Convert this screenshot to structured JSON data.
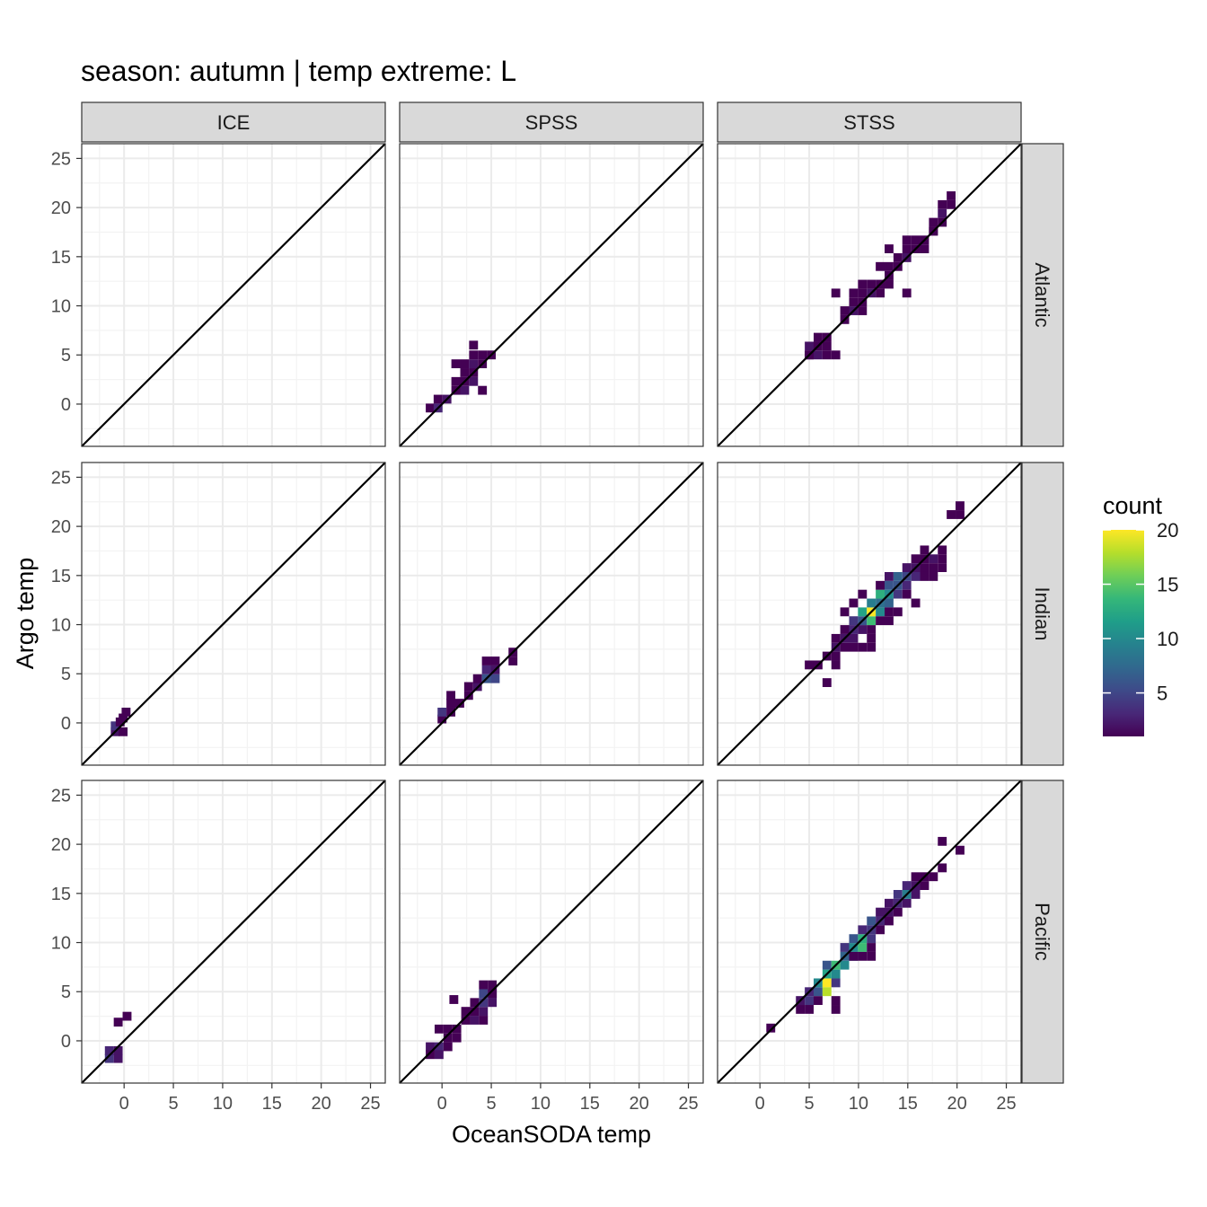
{
  "chart_data": {
    "type": "heatmap",
    "title": "season: autumn | temp extreme: L",
    "xlabel": "OceanSODA temp",
    "ylabel": "Argo temp",
    "xlim": [
      -4.3,
      26.5
    ],
    "ylim": [
      -4.3,
      26.5
    ],
    "x_ticks": [
      0,
      5,
      10,
      15,
      20,
      25
    ],
    "y_ticks": [
      0,
      5,
      10,
      15,
      20,
      25
    ],
    "x_tick_labels": [
      "0",
      "5",
      "10",
      "15",
      "20",
      "25"
    ],
    "y_tick_labels": [
      "0",
      "5",
      "10",
      "15",
      "20",
      "25"
    ],
    "grid": true,
    "identity_line": true,
    "bin_width": 0.9,
    "col_facets": [
      "ICE",
      "SPSS",
      "STSS"
    ],
    "row_facets": [
      "Atlantic",
      "Indian",
      "Pacific"
    ],
    "legend": {
      "title": "count",
      "position": "right",
      "min": 1,
      "max": 20,
      "ticks": [
        5,
        10,
        15,
        20
      ],
      "tick_labels": [
        "5",
        "10",
        "15",
        "20"
      ],
      "colors": [
        "#440154",
        "#482878",
        "#3e4a89",
        "#31688e",
        "#26828e",
        "#1f9e89",
        "#35b779",
        "#6ece58",
        "#b5de2b",
        "#fde725"
      ]
    },
    "panels": [
      {
        "row": "Atlantic",
        "col": "ICE",
        "bins": []
      },
      {
        "row": "Atlantic",
        "col": "SPSS",
        "bins": [
          [
            -1.2,
            -0.4,
            1
          ],
          [
            -0.4,
            -0.4,
            3
          ],
          [
            -0.4,
            0.5,
            1
          ],
          [
            0.5,
            0.5,
            2
          ],
          [
            1.4,
            1.4,
            1
          ],
          [
            2.3,
            2.3,
            1
          ],
          [
            1.4,
            2.3,
            1
          ],
          [
            2.3,
            1.4,
            2
          ],
          [
            3.2,
            3.2,
            1
          ],
          [
            3.2,
            2.3,
            2
          ],
          [
            2.3,
            3.2,
            1
          ],
          [
            1.4,
            4.1,
            1
          ],
          [
            2.3,
            4.1,
            1
          ],
          [
            3.2,
            4.1,
            2
          ],
          [
            4.1,
            4.1,
            1
          ],
          [
            3.2,
            5.0,
            1
          ],
          [
            4.1,
            5.0,
            1
          ],
          [
            5.0,
            5.0,
            1
          ],
          [
            3.2,
            6.0,
            1
          ],
          [
            4.1,
            1.4,
            1
          ]
        ]
      },
      {
        "row": "Atlantic",
        "col": "STSS",
        "bins": [
          [
            5.0,
            5.9,
            2
          ],
          [
            5.9,
            5.9,
            1
          ],
          [
            5.0,
            5.0,
            1
          ],
          [
            5.0,
            5.0,
            1
          ],
          [
            5.9,
            5.0,
            2
          ],
          [
            6.8,
            5.0,
            1
          ],
          [
            6.8,
            5.9,
            1
          ],
          [
            7.7,
            5.0,
            1
          ],
          [
            5.9,
            6.8,
            1
          ],
          [
            6.8,
            6.8,
            1
          ],
          [
            8.6,
            8.6,
            1
          ],
          [
            9.5,
            9.5,
            2
          ],
          [
            9.5,
            10.4,
            1
          ],
          [
            10.4,
            10.4,
            1
          ],
          [
            11.3,
            11.3,
            2
          ],
          [
            12.2,
            12.2,
            1
          ],
          [
            12.2,
            11.3,
            1
          ],
          [
            13.1,
            13.1,
            1
          ],
          [
            13.1,
            14.0,
            1
          ],
          [
            14.0,
            14.0,
            1
          ],
          [
            14.9,
            14.9,
            2
          ],
          [
            15.8,
            15.8,
            1
          ],
          [
            14.9,
            16.7,
            1
          ],
          [
            15.8,
            16.7,
            1
          ],
          [
            16.7,
            16.7,
            1
          ],
          [
            16.7,
            15.8,
            1
          ],
          [
            17.6,
            18.5,
            1
          ],
          [
            18.5,
            18.5,
            1
          ],
          [
            19.4,
            20.3,
            1
          ],
          [
            18.5,
            20.3,
            1
          ],
          [
            19.4,
            21.2,
            1
          ],
          [
            18.5,
            19.4,
            2
          ],
          [
            17.6,
            17.6,
            1
          ],
          [
            11.3,
            12.2,
            1
          ],
          [
            10.4,
            11.3,
            1
          ],
          [
            7.7,
            11.3,
            1
          ],
          [
            9.5,
            11.3,
            1
          ],
          [
            10.4,
            12.2,
            1
          ],
          [
            14.9,
            11.3,
            1
          ],
          [
            13.1,
            12.2,
            1
          ],
          [
            14.0,
            14.9,
            1
          ],
          [
            8.6,
            9.5,
            1
          ],
          [
            13.1,
            15.8,
            1
          ],
          [
            14.9,
            15.8,
            1
          ],
          [
            17.6,
            17.6,
            1
          ],
          [
            12.2,
            14.0,
            1
          ],
          [
            10.4,
            9.5,
            1
          ]
        ]
      },
      {
        "row": "Indian",
        "col": "ICE",
        "bins": [
          [
            -0.9,
            -0.9,
            2
          ],
          [
            -0.9,
            -0.3,
            4
          ],
          [
            -0.4,
            0.1,
            1
          ],
          [
            -0.1,
            -0.9,
            1
          ],
          [
            -0.1,
            0.5,
            1
          ],
          [
            0.2,
            1.1,
            1
          ]
        ]
      },
      {
        "row": "Indian",
        "col": "SPSS",
        "bins": [
          [
            0.0,
            0.4,
            1
          ],
          [
            0.0,
            1.1,
            4
          ],
          [
            0.9,
            1.1,
            1
          ],
          [
            0.9,
            2.0,
            1
          ],
          [
            0.9,
            2.8,
            1
          ],
          [
            1.8,
            2.0,
            1
          ],
          [
            2.7,
            2.8,
            1
          ],
          [
            3.6,
            3.7,
            2
          ],
          [
            3.6,
            4.5,
            1
          ],
          [
            4.5,
            4.5,
            6
          ],
          [
            5.4,
            4.5,
            5
          ],
          [
            4.5,
            5.4,
            3
          ],
          [
            5.4,
            5.4,
            2
          ],
          [
            4.5,
            6.3,
            1
          ],
          [
            5.4,
            6.3,
            1
          ],
          [
            7.2,
            6.3,
            1
          ],
          [
            7.2,
            7.2,
            1
          ],
          [
            2.7,
            3.7,
            1
          ]
        ]
      },
      {
        "row": "Indian",
        "col": "STSS",
        "bins": [
          [
            5.0,
            5.9,
            1
          ],
          [
            5.9,
            5.9,
            1
          ],
          [
            6.8,
            4.1,
            1
          ],
          [
            7.7,
            5.9,
            1
          ],
          [
            6.8,
            6.8,
            1
          ],
          [
            7.7,
            6.8,
            1
          ],
          [
            7.7,
            7.7,
            2
          ],
          [
            8.6,
            7.7,
            1
          ],
          [
            9.5,
            7.7,
            1
          ],
          [
            8.6,
            8.6,
            2
          ],
          [
            7.7,
            8.6,
            1
          ],
          [
            9.5,
            8.6,
            2
          ],
          [
            8.6,
            9.5,
            1
          ],
          [
            9.5,
            9.5,
            3
          ],
          [
            10.4,
            9.5,
            2
          ],
          [
            11.3,
            9.5,
            1
          ],
          [
            9.5,
            10.4,
            4
          ],
          [
            10.4,
            10.4,
            6
          ],
          [
            10.4,
            11.3,
            12
          ],
          [
            11.3,
            10.4,
            14
          ],
          [
            11.3,
            11.3,
            20
          ],
          [
            12.2,
            11.3,
            10
          ],
          [
            11.3,
            12.2,
            9
          ],
          [
            12.2,
            12.2,
            8
          ],
          [
            13.1,
            12.2,
            7
          ],
          [
            12.2,
            13.1,
            13
          ],
          [
            13.1,
            13.1,
            10
          ],
          [
            14.0,
            13.1,
            4
          ],
          [
            13.1,
            14.0,
            6
          ],
          [
            14.0,
            14.0,
            6
          ],
          [
            14.9,
            14.0,
            3
          ],
          [
            13.1,
            14.9,
            2
          ],
          [
            14.0,
            14.9,
            7
          ],
          [
            14.9,
            14.9,
            5
          ],
          [
            15.8,
            14.9,
            3
          ],
          [
            14.9,
            15.8,
            2
          ],
          [
            15.8,
            15.8,
            2
          ],
          [
            16.7,
            15.8,
            1
          ],
          [
            15.8,
            16.7,
            1
          ],
          [
            16.7,
            16.7,
            1
          ],
          [
            17.6,
            16.7,
            2
          ],
          [
            16.7,
            17.6,
            1
          ],
          [
            17.6,
            15.8,
            1
          ],
          [
            18.5,
            16.7,
            1
          ],
          [
            18.5,
            17.6,
            1
          ],
          [
            10.4,
            7.7,
            1
          ],
          [
            11.3,
            8.6,
            1
          ],
          [
            9.5,
            12.2,
            1
          ],
          [
            13.1,
            10.4,
            1
          ],
          [
            12.2,
            10.4,
            1
          ],
          [
            10.4,
            13.1,
            1
          ],
          [
            13.1,
            11.3,
            1
          ],
          [
            8.6,
            11.3,
            1
          ],
          [
            11.3,
            7.7,
            1
          ],
          [
            12.2,
            14.0,
            1
          ],
          [
            14.9,
            13.1,
            1
          ],
          [
            16.7,
            14.9,
            1
          ],
          [
            14.0,
            11.3,
            1
          ],
          [
            17.6,
            14.9,
            1
          ],
          [
            20.3,
            21.2,
            1
          ],
          [
            20.3,
            22.1,
            1
          ],
          [
            19.4,
            21.2,
            1
          ],
          [
            18.5,
            15.8,
            1
          ],
          [
            15.8,
            12.2,
            1
          ]
        ]
      },
      {
        "row": "Pacific",
        "col": "ICE",
        "bins": [
          [
            -1.5,
            -1.8,
            4
          ],
          [
            -1.5,
            -1.0,
            3
          ],
          [
            -0.6,
            -1.8,
            2
          ],
          [
            -0.6,
            -1.0,
            2
          ],
          [
            0.3,
            2.5,
            1
          ],
          [
            -0.6,
            1.9,
            1
          ]
        ]
      },
      {
        "row": "Pacific",
        "col": "SPSS",
        "bins": [
          [
            -1.2,
            -0.6,
            2
          ],
          [
            -0.3,
            -0.6,
            3
          ],
          [
            -1.2,
            -1.4,
            1
          ],
          [
            -0.3,
            -1.4,
            2
          ],
          [
            0.6,
            -0.6,
            1
          ],
          [
            0.6,
            0.3,
            1
          ],
          [
            1.5,
            0.3,
            1
          ],
          [
            0.6,
            1.2,
            1
          ],
          [
            -0.3,
            1.2,
            1
          ],
          [
            1.5,
            1.2,
            1
          ],
          [
            2.4,
            2.1,
            1
          ],
          [
            3.3,
            2.1,
            2
          ],
          [
            2.4,
            3.0,
            1
          ],
          [
            3.3,
            3.0,
            1
          ],
          [
            4.2,
            3.0,
            2
          ],
          [
            4.2,
            2.1,
            1
          ],
          [
            3.3,
            3.9,
            1
          ],
          [
            4.2,
            3.9,
            4
          ],
          [
            5.1,
            3.9,
            2
          ],
          [
            4.2,
            4.8,
            5
          ],
          [
            5.1,
            4.8,
            4
          ],
          [
            4.2,
            5.7,
            1
          ],
          [
            5.1,
            5.7,
            1
          ],
          [
            5.1,
            4.8,
            1
          ],
          [
            1.2,
            4.2,
            1
          ]
        ]
      },
      {
        "row": "Pacific",
        "col": "STSS",
        "bins": [
          [
            1.1,
            1.3,
            1
          ],
          [
            4.1,
            4.1,
            2
          ],
          [
            4.1,
            3.2,
            1
          ],
          [
            5.0,
            3.2,
            1
          ],
          [
            5.0,
            4.1,
            4
          ],
          [
            5.0,
            5.0,
            3
          ],
          [
            5.9,
            5.0,
            6
          ],
          [
            5.9,
            5.9,
            10
          ],
          [
            6.8,
            5.9,
            20
          ],
          [
            6.8,
            5.0,
            18
          ],
          [
            6.8,
            6.8,
            12
          ],
          [
            7.7,
            6.8,
            10
          ],
          [
            7.7,
            5.9,
            4
          ],
          [
            7.7,
            4.1,
            1
          ],
          [
            5.9,
            4.1,
            1
          ],
          [
            6.8,
            7.7,
            6
          ],
          [
            7.7,
            7.7,
            14
          ],
          [
            8.6,
            7.7,
            10
          ],
          [
            8.6,
            8.6,
            7
          ],
          [
            9.5,
            8.6,
            8
          ],
          [
            8.6,
            9.5,
            4
          ],
          [
            9.5,
            9.5,
            10
          ],
          [
            10.4,
            9.5,
            14
          ],
          [
            9.5,
            10.4,
            6
          ],
          [
            10.4,
            10.4,
            13
          ],
          [
            11.3,
            10.4,
            4
          ],
          [
            10.4,
            11.3,
            3
          ],
          [
            11.3,
            11.3,
            4
          ],
          [
            11.3,
            12.2,
            6
          ],
          [
            12.2,
            12.2,
            3
          ],
          [
            12.2,
            13.1,
            2
          ],
          [
            13.1,
            13.1,
            2
          ],
          [
            14.0,
            13.1,
            1
          ],
          [
            13.1,
            14.0,
            2
          ],
          [
            14.0,
            14.0,
            3
          ],
          [
            14.9,
            14.0,
            2
          ],
          [
            14.0,
            14.9,
            4
          ],
          [
            14.9,
            14.9,
            9
          ],
          [
            15.8,
            14.9,
            2
          ],
          [
            14.9,
            15.8,
            3
          ],
          [
            15.8,
            15.8,
            2
          ],
          [
            16.7,
            15.8,
            1
          ],
          [
            15.8,
            16.7,
            1
          ],
          [
            16.7,
            16.7,
            1
          ],
          [
            17.6,
            16.7,
            1
          ],
          [
            18.5,
            17.6,
            1
          ],
          [
            18.5,
            20.3,
            1
          ],
          [
            20.3,
            19.4,
            1
          ],
          [
            9.5,
            8.6,
            1
          ],
          [
            11.3,
            9.5,
            1
          ],
          [
            12.2,
            11.3,
            1
          ],
          [
            10.4,
            8.6,
            1
          ],
          [
            11.3,
            8.6,
            1
          ],
          [
            13.1,
            12.2,
            1
          ],
          [
            7.7,
            3.2,
            1
          ]
        ]
      }
    ]
  }
}
